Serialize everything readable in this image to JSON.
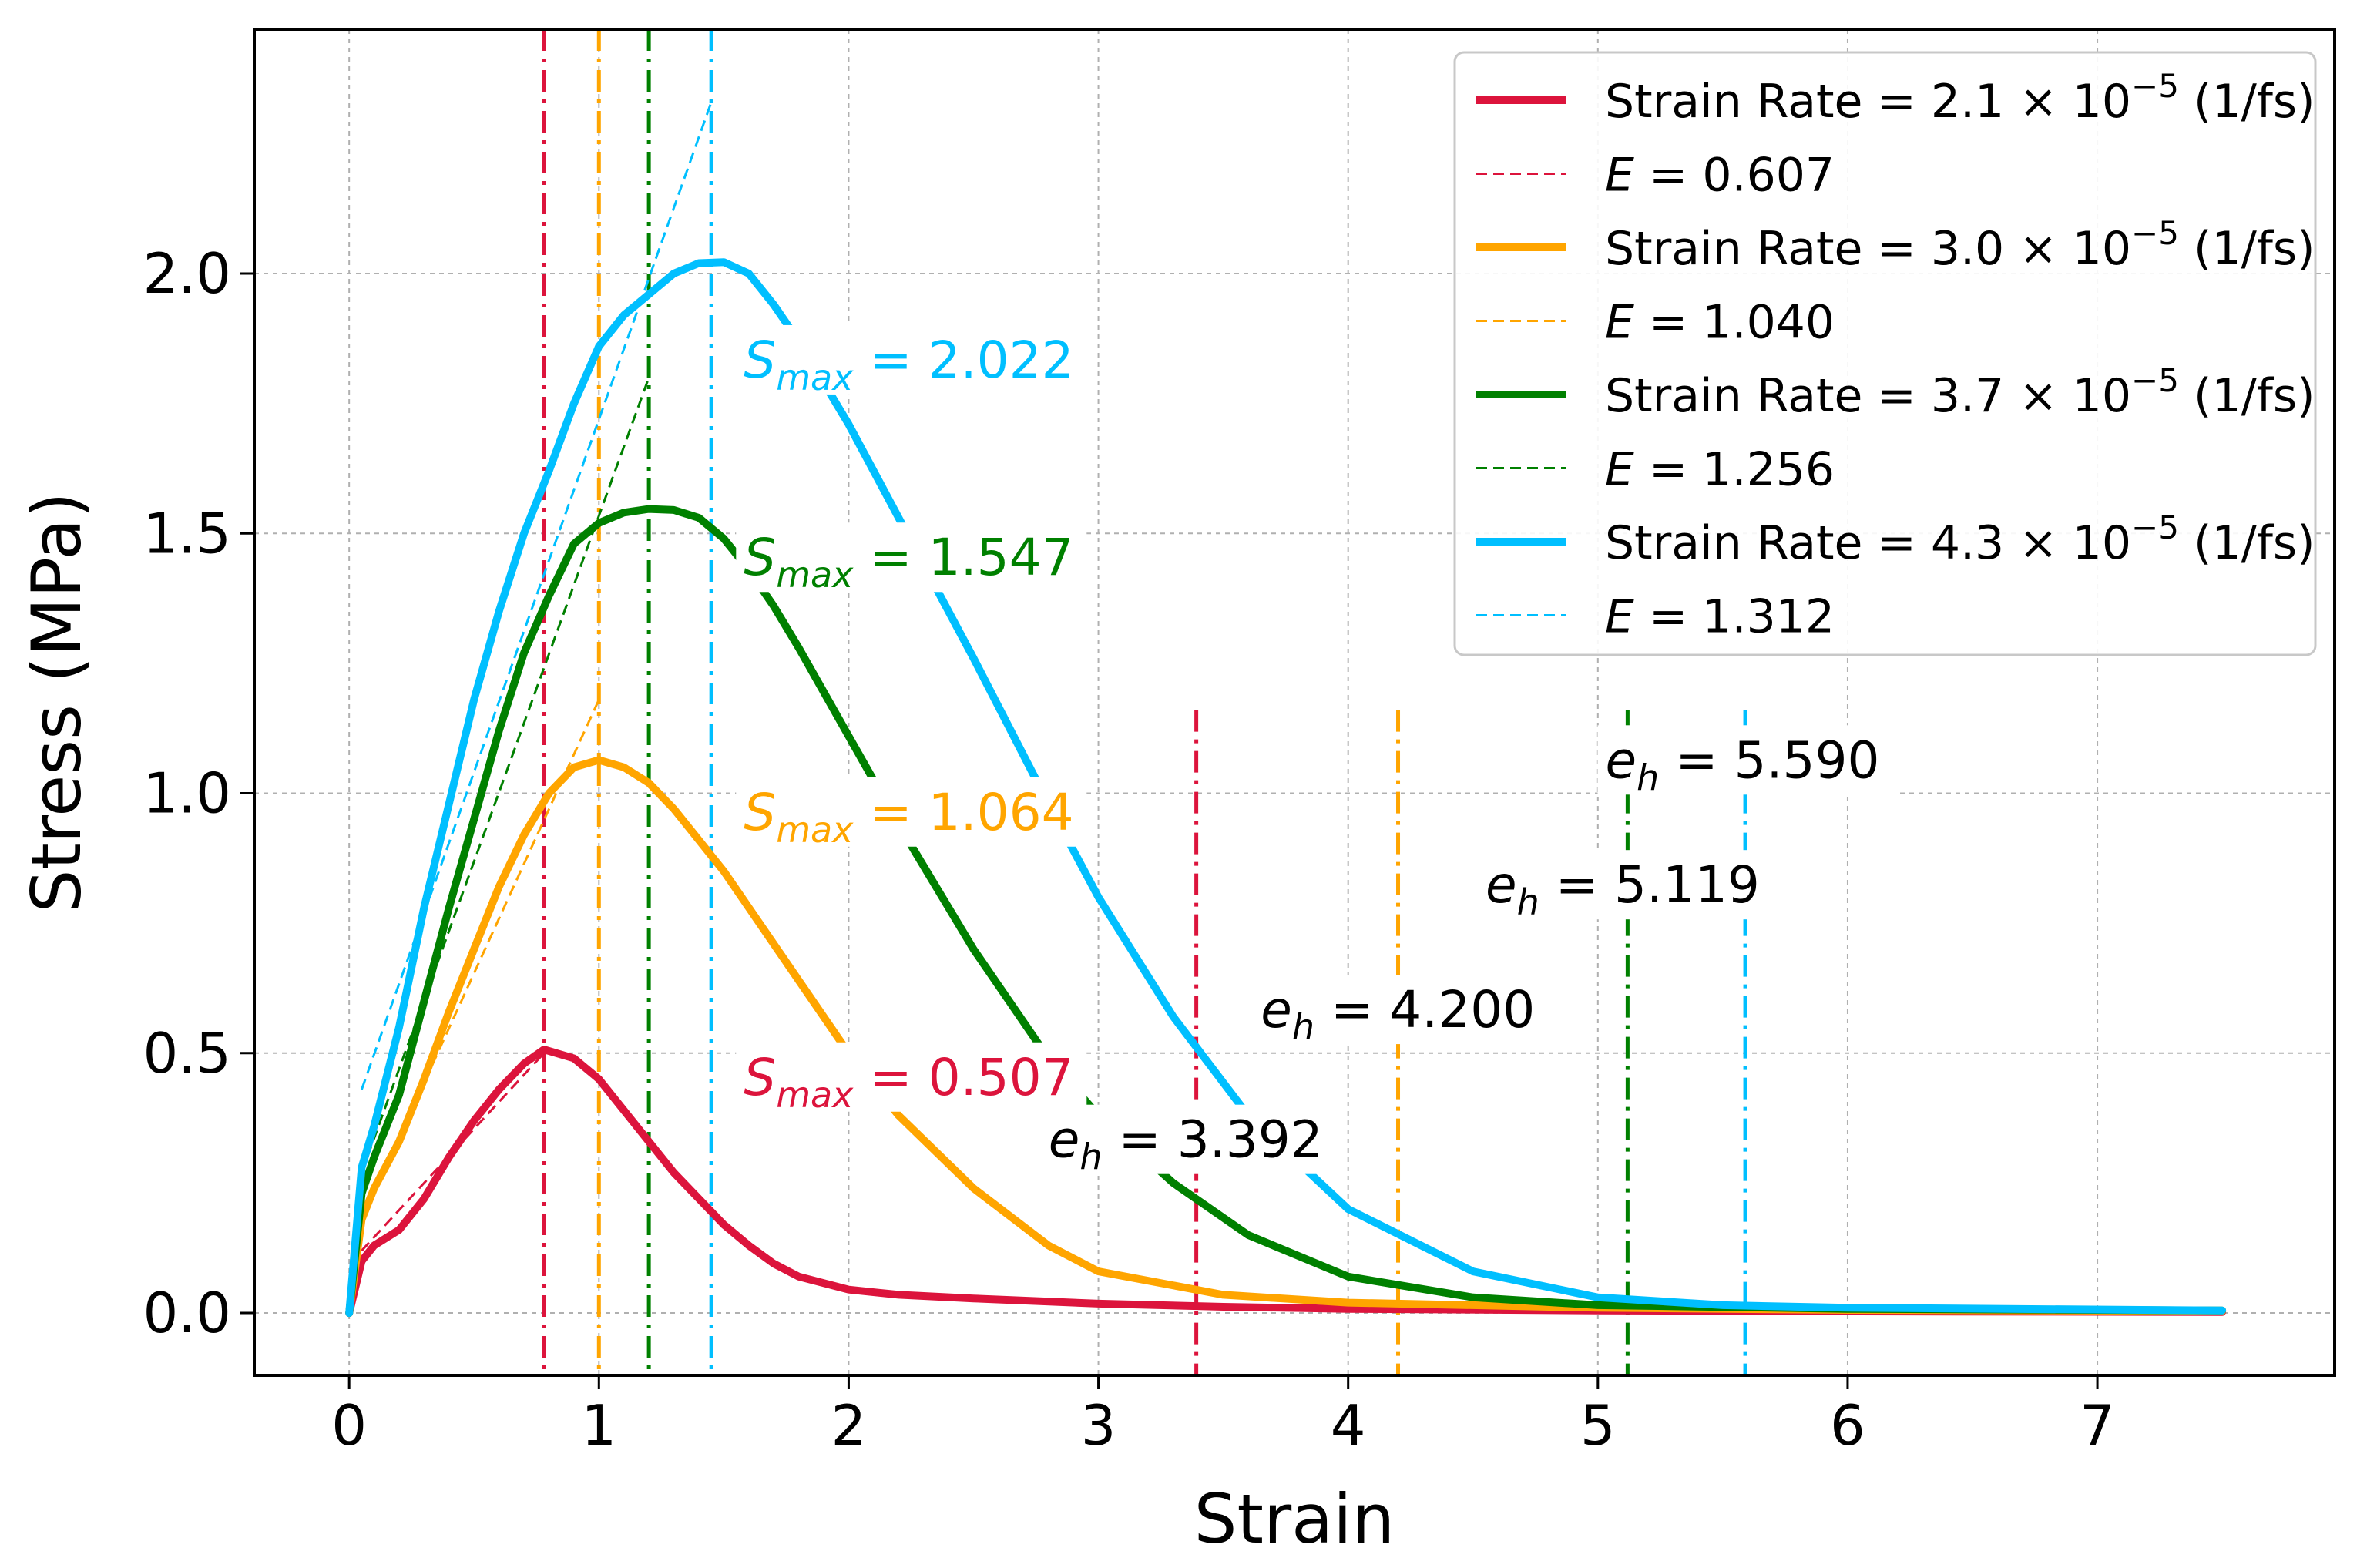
{
  "chart_data": {
    "type": "line",
    "xlabel": "Strain",
    "ylabel": "Stress (MPa)",
    "xlim": [
      -0.38,
      7.95
    ],
    "ylim": [
      -0.12,
      2.47
    ],
    "xticks": [
      0,
      1,
      2,
      3,
      4,
      5,
      6,
      7
    ],
    "xtick_labels": [
      "0",
      "1",
      "2",
      "3",
      "4",
      "5",
      "6",
      "7"
    ],
    "yticks": [
      0.0,
      0.5,
      1.0,
      1.5,
      2.0
    ],
    "ytick_labels": [
      "0.0",
      "0.5",
      "1.0",
      "1.5",
      "2.0"
    ],
    "grid": true,
    "legend_position": "top-right",
    "series": [
      {
        "name": "Strain Rate = 2.1 × 10⁻⁵ (1/fs)",
        "name_parts": {
          "pre": "Strain Rate = 2.1 × 10",
          "exp": "−5",
          "post": " (1/fs)"
        },
        "color": "#dc143c",
        "x": [
          0,
          0.05,
          0.1,
          0.2,
          0.3,
          0.4,
          0.5,
          0.6,
          0.7,
          0.78,
          0.9,
          1.0,
          1.1,
          1.2,
          1.3,
          1.4,
          1.5,
          1.6,
          1.7,
          1.8,
          2.0,
          2.2,
          2.5,
          3.0,
          3.5,
          4.0,
          5.0,
          6.0,
          7.5
        ],
        "y": [
          0,
          0.1,
          0.13,
          0.16,
          0.22,
          0.3,
          0.37,
          0.43,
          0.48,
          0.507,
          0.49,
          0.45,
          0.39,
          0.33,
          0.27,
          0.22,
          0.17,
          0.13,
          0.095,
          0.07,
          0.045,
          0.035,
          0.028,
          0.018,
          0.012,
          0.008,
          0.005,
          0.003,
          0.002
        ],
        "modulus_label": {
          "pre": "E",
          "post": " = 0.607"
        },
        "modulus_line": {
          "x": [
            0.05,
            0.78
          ],
          "y": [
            0.12,
            0.5
          ]
        },
        "peak_strain": 0.78,
        "peak": {
          "pre": "S",
          "sub": "max",
          "post": " = 0.507",
          "x": 1.58,
          "y": 0.42
        },
        "eh": 3.392,
        "eh_label": {
          "pre": "e",
          "sub": "h",
          "post": " = 3.392",
          "x": 2.8,
          "y": 0.3
        }
      },
      {
        "name": "Strain Rate = 3.0 × 10⁻⁵ (1/fs)",
        "name_parts": {
          "pre": "Strain Rate = 3.0 × 10",
          "exp": "−5",
          "post": " (1/fs)"
        },
        "color": "#ffa500",
        "x": [
          0,
          0.05,
          0.1,
          0.2,
          0.3,
          0.4,
          0.5,
          0.6,
          0.7,
          0.8,
          0.9,
          1.0,
          1.1,
          1.2,
          1.3,
          1.4,
          1.5,
          1.6,
          1.7,
          1.8,
          2.0,
          2.2,
          2.5,
          2.8,
          3.0,
          3.5,
          4.0,
          5.0,
          6.0,
          7.5
        ],
        "y": [
          0,
          0.18,
          0.24,
          0.33,
          0.45,
          0.58,
          0.7,
          0.82,
          0.92,
          1.0,
          1.05,
          1.064,
          1.05,
          1.02,
          0.97,
          0.91,
          0.85,
          0.78,
          0.71,
          0.64,
          0.5,
          0.38,
          0.24,
          0.13,
          0.08,
          0.035,
          0.02,
          0.01,
          0.006,
          0.004
        ],
        "modulus_label": {
          "pre": "E",
          "post": " = 1.040"
        },
        "modulus_line": {
          "x": [
            0.05,
            1.0
          ],
          "y": [
            0.18,
            1.18
          ]
        },
        "peak_strain": 1.0,
        "peak": {
          "pre": "S",
          "sub": "max",
          "post": " = 1.064",
          "x": 1.58,
          "y": 0.93
        },
        "eh": 4.2,
        "eh_label": {
          "pre": "e",
          "sub": "h",
          "post": " = 4.200",
          "x": 3.65,
          "y": 0.55
        }
      },
      {
        "name": "Strain Rate = 3.7 × 10⁻⁵ (1/fs)",
        "name_parts": {
          "pre": "Strain Rate = 3.7 × 10",
          "exp": "−5",
          "post": " (1/fs)"
        },
        "color": "#008000",
        "x": [
          0,
          0.05,
          0.1,
          0.2,
          0.3,
          0.4,
          0.5,
          0.6,
          0.7,
          0.8,
          0.9,
          1.0,
          1.1,
          1.2,
          1.3,
          1.4,
          1.5,
          1.6,
          1.7,
          1.8,
          2.0,
          2.2,
          2.5,
          2.8,
          3.0,
          3.3,
          3.6,
          4.0,
          4.5,
          5.0,
          6.0,
          7.5
        ],
        "y": [
          0,
          0.23,
          0.3,
          0.42,
          0.6,
          0.78,
          0.95,
          1.12,
          1.27,
          1.38,
          1.48,
          1.52,
          1.54,
          1.547,
          1.545,
          1.53,
          1.49,
          1.43,
          1.36,
          1.28,
          1.11,
          0.94,
          0.7,
          0.49,
          0.38,
          0.25,
          0.15,
          0.07,
          0.03,
          0.015,
          0.008,
          0.005
        ],
        "modulus_label": {
          "pre": "E",
          "post": " = 1.256"
        },
        "modulus_line": {
          "x": [
            0.05,
            1.2
          ],
          "y": [
            0.27,
            1.8
          ]
        },
        "peak_strain": 1.2,
        "peak": {
          "pre": "S",
          "sub": "max",
          "post": " = 1.547",
          "x": 1.58,
          "y": 1.42
        },
        "eh": 5.119,
        "eh_label": {
          "pre": "e",
          "sub": "h",
          "post": " = 5.119",
          "x": 4.55,
          "y": 0.79
        }
      },
      {
        "name": "Strain Rate = 4.3 × 10⁻⁵ (1/fs)",
        "name_parts": {
          "pre": "Strain Rate = 4.3 × 10",
          "exp": "−5",
          "post": " (1/fs)"
        },
        "color": "#00bfff",
        "x": [
          0,
          0.05,
          0.1,
          0.2,
          0.3,
          0.4,
          0.5,
          0.6,
          0.7,
          0.8,
          0.9,
          1.0,
          1.1,
          1.2,
          1.3,
          1.4,
          1.5,
          1.6,
          1.7,
          1.8,
          2.0,
          2.2,
          2.5,
          2.8,
          3.0,
          3.3,
          3.6,
          4.0,
          4.5,
          5.0,
          5.5,
          6.0,
          7.5
        ],
        "y": [
          0,
          0.28,
          0.36,
          0.55,
          0.78,
          0.98,
          1.18,
          1.35,
          1.5,
          1.62,
          1.75,
          1.86,
          1.92,
          1.96,
          2.0,
          2.02,
          2.022,
          2.0,
          1.94,
          1.87,
          1.71,
          1.53,
          1.26,
          0.98,
          0.8,
          0.57,
          0.38,
          0.2,
          0.08,
          0.03,
          0.015,
          0.01,
          0.005
        ],
        "modulus_label": {
          "pre": "E",
          "post": " = 1.312"
        },
        "modulus_line": {
          "x": [
            0.05,
            1.45
          ],
          "y": [
            0.43,
            2.33
          ]
        },
        "peak_strain": 1.45,
        "peak": {
          "pre": "S",
          "sub": "max",
          "post": " = 2.022",
          "x": 1.58,
          "y": 1.8
        },
        "eh": 5.59,
        "eh_label": {
          "pre": "e",
          "sub": "h",
          "post": " = 5.590",
          "x": 5.03,
          "y": 1.03
        }
      }
    ]
  }
}
